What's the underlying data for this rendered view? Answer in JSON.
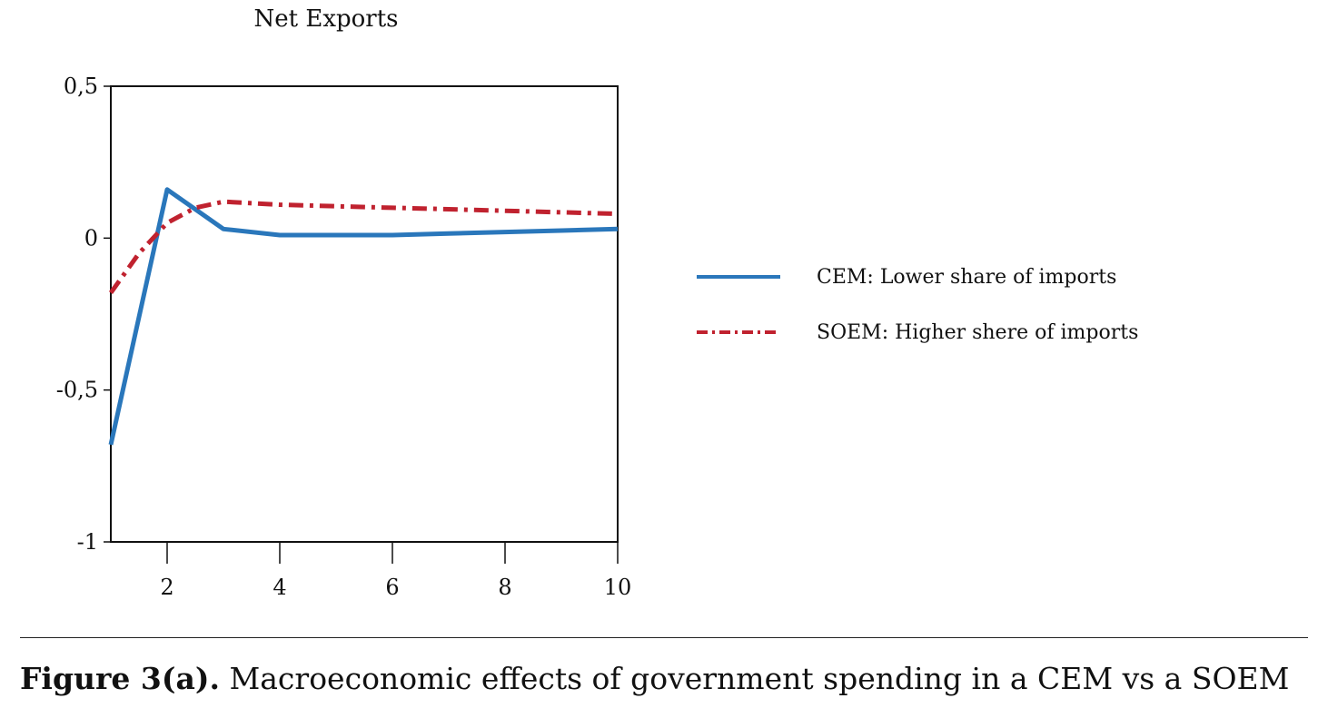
{
  "chart_data": {
    "type": "line",
    "title": "Net Exports",
    "xlabel": "",
    "ylabel": "",
    "xlim": [
      1,
      10
    ],
    "ylim": [
      -1,
      0.5
    ],
    "x_ticks": [
      2,
      4,
      6,
      8,
      10
    ],
    "y_ticks": [
      0.5,
      0,
      -0.5,
      -1
    ],
    "x_tick_labels": [
      "2",
      "4",
      "6",
      "8",
      "10"
    ],
    "y_tick_labels": [
      "0,5",
      "0",
      "-0,5",
      "-1"
    ],
    "grid": false,
    "legend_position": "right",
    "series": [
      {
        "name": "CEM: Lower share of imports",
        "color": "#2a77bb",
        "line_style": "solid",
        "x": [
          1,
          2,
          3,
          4,
          5,
          6,
          7,
          8,
          9,
          10
        ],
        "values": [
          -0.68,
          0.16,
          0.03,
          0.01,
          0.01,
          0.01,
          0.015,
          0.02,
          0.025,
          0.03
        ]
      },
      {
        "name": "SOEM: Higher shere of imports",
        "color": "#c0222f",
        "line_style": "dash-dot",
        "x": [
          1,
          1.5,
          2,
          2.5,
          3,
          4,
          5,
          6,
          7,
          8,
          9,
          10
        ],
        "values": [
          -0.18,
          -0.05,
          0.05,
          0.1,
          0.12,
          0.11,
          0.105,
          0.1,
          0.095,
          0.09,
          0.085,
          0.08
        ]
      }
    ]
  },
  "caption": {
    "label": "Figure 3(a).",
    "text": "Macroeconomic effects of government spending in a CEM vs a SOEM"
  }
}
